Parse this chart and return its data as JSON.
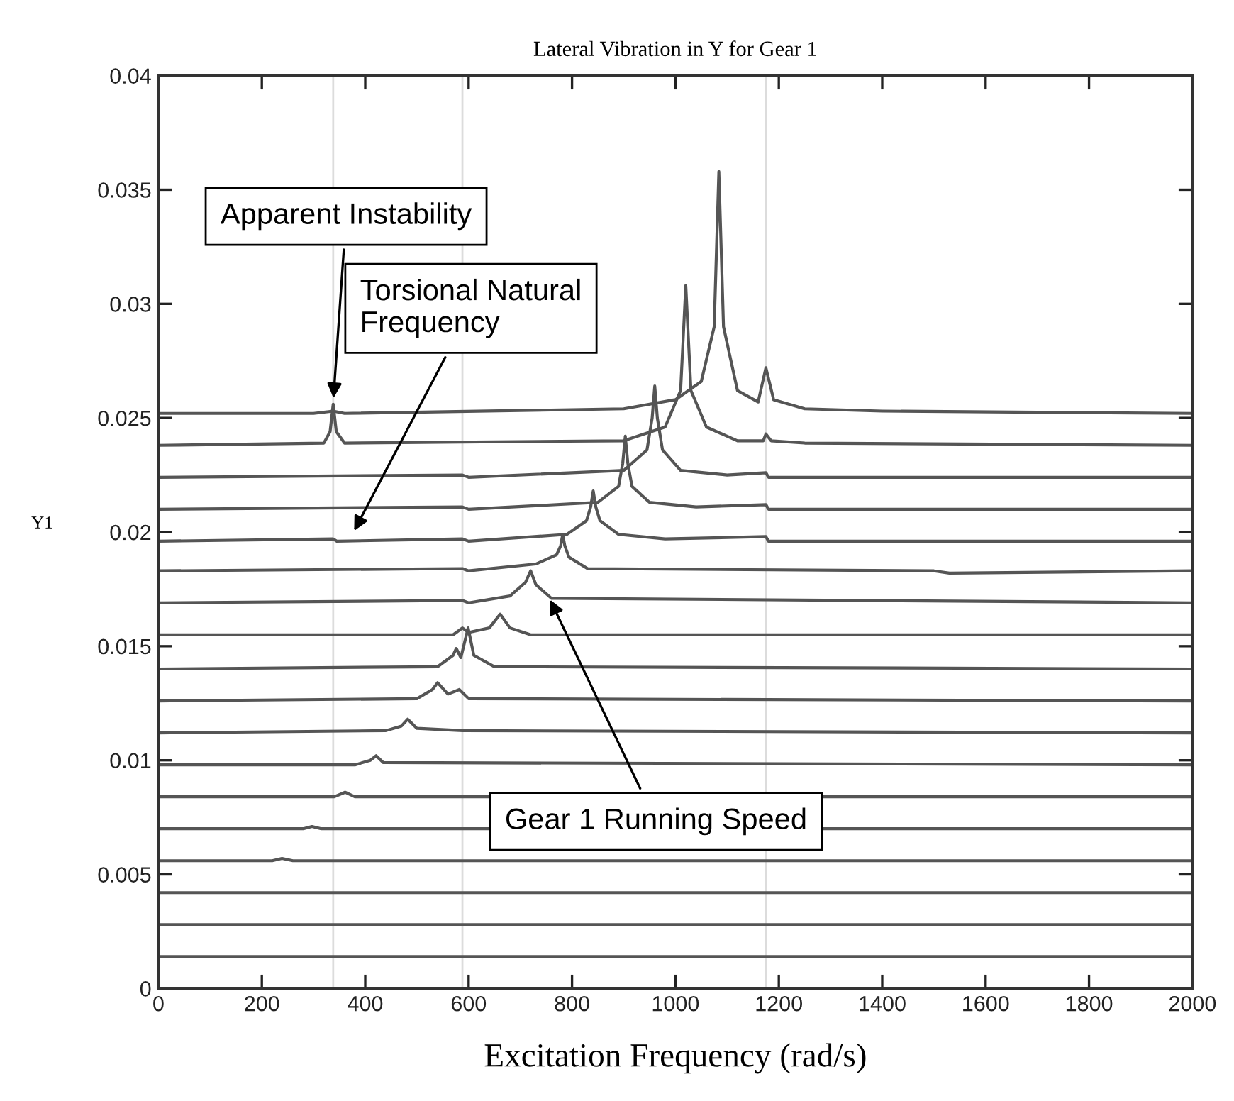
{
  "chart_data": {
    "type": "line",
    "title": "Lateral Vibration in Y for Gear 1",
    "xlabel": "Excitation Frequency (rad/s)",
    "ylabel": "Y1",
    "xlim": [
      0,
      2000
    ],
    "xticks": [
      0,
      200,
      400,
      600,
      800,
      1000,
      1200,
      1400,
      1600,
      1800,
      2000
    ],
    "ylim": [
      0,
      0.04
    ],
    "yticks": [
      0,
      0.005,
      0.01,
      0.015,
      0.02,
      0.025,
      0.03,
      0.035,
      0.04
    ],
    "marker": "none",
    "line_style": "solid",
    "ref_lines": [
      {
        "axis": "x",
        "value": 338,
        "color": "#dcdcdc"
      },
      {
        "axis": "x",
        "value": 588,
        "color": "#dcdcdc"
      },
      {
        "axis": "x",
        "value": 1175,
        "color": "#dcdcdc"
      }
    ],
    "series": [
      {
        "color": "#555555",
        "x": [
          0,
          2000
        ],
        "values": [
          0.0014,
          0.0014
        ]
      },
      {
        "color": "#555555",
        "x": [
          0,
          2000
        ],
        "values": [
          0.0028,
          0.0028
        ]
      },
      {
        "color": "#555555",
        "x": [
          0,
          2000
        ],
        "values": [
          0.0042,
          0.0042
        ]
      },
      {
        "color": "#555555",
        "x": [
          0,
          220,
          239,
          260,
          2000
        ],
        "values": [
          0.0056,
          0.0056,
          0.0057,
          0.0056,
          0.0056
        ]
      },
      {
        "color": "#555555",
        "x": [
          0,
          280,
          297,
          315,
          2000
        ],
        "values": [
          0.007,
          0.007,
          0.0071,
          0.007,
          0.007
        ]
      },
      {
        "color": "#555555",
        "x": [
          0,
          340,
          361,
          380,
          2000
        ],
        "values": [
          0.0084,
          0.0084,
          0.0086,
          0.0084,
          0.0084
        ]
      },
      {
        "color": "#555555",
        "x": [
          0,
          380,
          410,
          421,
          435,
          2000
        ],
        "values": [
          0.0098,
          0.0098,
          0.01,
          0.0102,
          0.0099,
          0.0098
        ]
      },
      {
        "color": "#555555",
        "x": [
          0,
          440,
          470,
          482,
          500,
          588,
          2000
        ],
        "values": [
          0.0112,
          0.0113,
          0.0115,
          0.0118,
          0.0114,
          0.0113,
          0.0112
        ]
      },
      {
        "color": "#555555",
        "x": [
          0,
          500,
          530,
          540,
          560,
          582,
          600,
          2000
        ],
        "values": [
          0.0126,
          0.0127,
          0.0131,
          0.0134,
          0.0129,
          0.0131,
          0.0127,
          0.0126
        ]
      },
      {
        "color": "#555555",
        "x": [
          0,
          540,
          570,
          576,
          585,
          599,
          610,
          650,
          2000
        ],
        "values": [
          0.014,
          0.0141,
          0.0146,
          0.0149,
          0.0145,
          0.0158,
          0.0146,
          0.0141,
          0.014
        ]
      },
      {
        "color": "#555555",
        "x": [
          0,
          570,
          588,
          600,
          640,
          661,
          680,
          720,
          2000
        ],
        "values": [
          0.0155,
          0.0155,
          0.0158,
          0.0156,
          0.0158,
          0.0164,
          0.0158,
          0.0155,
          0.0155
        ]
      },
      {
        "color": "#555555",
        "x": [
          0,
          588,
          600,
          680,
          710,
          720,
          730,
          760,
          2000
        ],
        "values": [
          0.0169,
          0.017,
          0.0169,
          0.0172,
          0.0178,
          0.0183,
          0.0177,
          0.0171,
          0.0169
        ]
      },
      {
        "color": "#555555",
        "x": [
          0,
          588,
          600,
          730,
          770,
          778,
          782,
          786,
          794,
          830,
          1500,
          1530,
          2000
        ],
        "values": [
          0.0183,
          0.0184,
          0.0183,
          0.0186,
          0.019,
          0.0194,
          0.0199,
          0.0194,
          0.0189,
          0.0184,
          0.0183,
          0.0182,
          0.0183
        ]
      },
      {
        "color": "#555555",
        "x": [
          0,
          338,
          345,
          588,
          600,
          790,
          828,
          836,
          841,
          846,
          854,
          890,
          980,
          1175,
          1180,
          2000
        ],
        "values": [
          0.0196,
          0.0197,
          0.0196,
          0.0197,
          0.0196,
          0.0199,
          0.0205,
          0.0211,
          0.0218,
          0.0211,
          0.0205,
          0.0199,
          0.0197,
          0.0198,
          0.0196,
          0.0196
        ]
      },
      {
        "color": "#555555",
        "x": [
          0,
          588,
          600,
          850,
          890,
          898,
          903,
          908,
          916,
          950,
          1040,
          1175,
          1180,
          2000
        ],
        "values": [
          0.021,
          0.0211,
          0.021,
          0.0213,
          0.022,
          0.023,
          0.0242,
          0.023,
          0.022,
          0.0213,
          0.0211,
          0.0212,
          0.021,
          0.021
        ]
      },
      {
        "color": "#555555",
        "x": [
          0,
          588,
          600,
          900,
          945,
          955,
          960,
          965,
          975,
          1010,
          1100,
          1175,
          1180,
          2000
        ],
        "values": [
          0.0224,
          0.0225,
          0.0224,
          0.0227,
          0.0236,
          0.025,
          0.0264,
          0.025,
          0.0236,
          0.0227,
          0.0225,
          0.0226,
          0.0224,
          0.0224
        ]
      },
      {
        "color": "#555555",
        "x": [
          0,
          320,
          332,
          338,
          344,
          360,
          900,
          980,
          1010,
          1020,
          1030,
          1060,
          1120,
          1170,
          1175,
          1185,
          1250,
          2000
        ],
        "values": [
          0.0238,
          0.0239,
          0.0244,
          0.0256,
          0.0244,
          0.0239,
          0.024,
          0.0246,
          0.0262,
          0.0308,
          0.0262,
          0.0246,
          0.024,
          0.024,
          0.0243,
          0.024,
          0.0239,
          0.0238
        ]
      },
      {
        "color": "#555555",
        "x": [
          0,
          300,
          338,
          360,
          900,
          1000,
          1050,
          1075,
          1084,
          1093,
          1120,
          1160,
          1175,
          1190,
          1250,
          1400,
          2000
        ],
        "values": [
          0.0252,
          0.0252,
          0.0253,
          0.0252,
          0.0254,
          0.0258,
          0.0266,
          0.029,
          0.0358,
          0.029,
          0.0262,
          0.0257,
          0.0272,
          0.0258,
          0.0254,
          0.0253,
          0.0252
        ]
      }
    ],
    "annotations": [
      {
        "text": "Apparent Instability",
        "x": 338,
        "y": 0.0257
      },
      {
        "text": "Torsional Natural Frequency",
        "x": 375,
        "y": 0.0199
      },
      {
        "text": "Gear 1 Running Speed",
        "x": 754,
        "y": 0.0172
      }
    ]
  }
}
